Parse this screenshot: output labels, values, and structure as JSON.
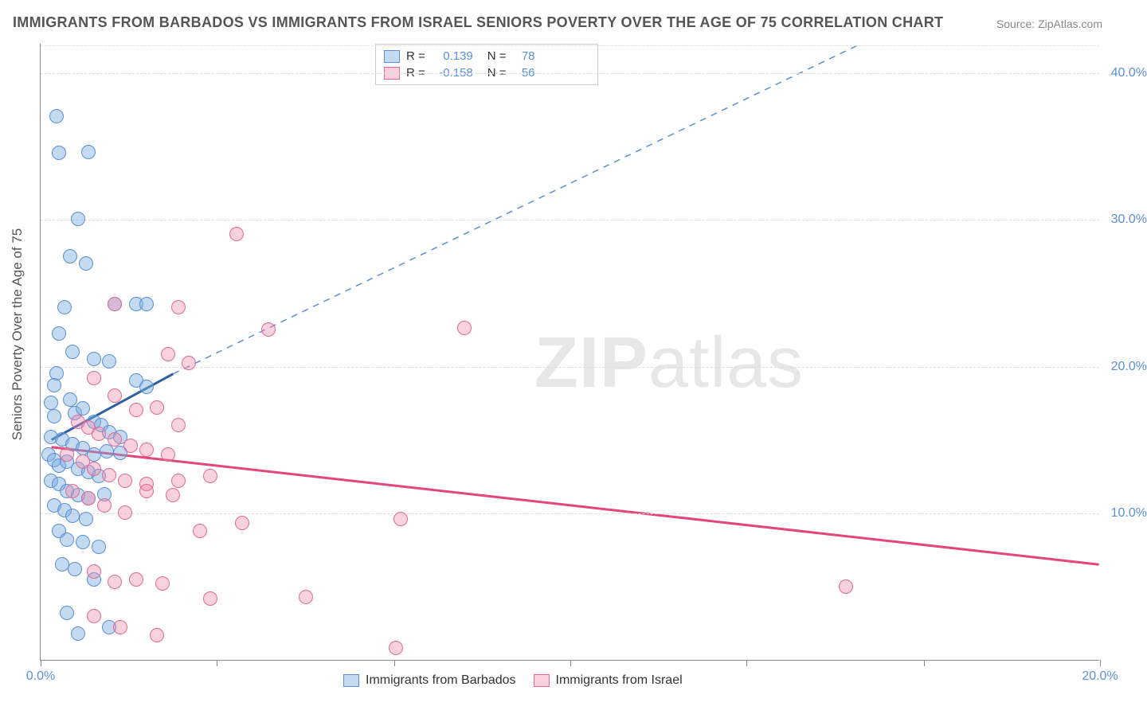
{
  "title": "IMMIGRANTS FROM BARBADOS VS IMMIGRANTS FROM ISRAEL SENIORS POVERTY OVER THE AGE OF 75 CORRELATION CHART",
  "source": "Source: ZipAtlas.com",
  "y_axis_label": "Seniors Poverty Over the Age of 75",
  "watermark_a": "ZIP",
  "watermark_b": "atlas",
  "chart": {
    "type": "scatter",
    "xlim": [
      0,
      20
    ],
    "ylim": [
      0,
      42
    ],
    "x_ticks": [
      0,
      3.33,
      6.67,
      10,
      13.33,
      16.67,
      20
    ],
    "x_tick_labels": {
      "0": "0.0%",
      "20": "20.0%"
    },
    "y_grid": [
      10,
      20,
      30,
      40
    ],
    "y_tick_labels": {
      "10": "10.0%",
      "20": "20.0%",
      "30": "30.0%",
      "40": "40.0%"
    },
    "background_color": "#ffffff",
    "grid_color": "#dddddd",
    "axis_color": "#888888",
    "point_radius": 9,
    "series": [
      {
        "name": "Immigrants from Barbados",
        "fill": "rgba(122,172,224,0.45)",
        "stroke": "#5b8fd6",
        "R": "0.139",
        "N": "78",
        "trend": {
          "solid": {
            "x1": 0.2,
            "y1": 15.0,
            "x2": 2.5,
            "y2": 19.5,
            "color": "#2e5fa3",
            "width": 3
          },
          "dashed": {
            "x1": 2.5,
            "y1": 19.5,
            "x2": 15.5,
            "y2": 42.0,
            "color": "#5b8fd6",
            "width": 1.5
          }
        },
        "points": [
          [
            0.3,
            37.0
          ],
          [
            0.35,
            34.5
          ],
          [
            0.9,
            34.6
          ],
          [
            0.7,
            30.0
          ],
          [
            0.55,
            27.5
          ],
          [
            0.85,
            27.0
          ],
          [
            1.4,
            24.2
          ],
          [
            1.8,
            24.2
          ],
          [
            2.0,
            24.2
          ],
          [
            0.45,
            24.0
          ],
          [
            0.35,
            22.2
          ],
          [
            0.6,
            21.0
          ],
          [
            1.0,
            20.5
          ],
          [
            1.3,
            20.3
          ],
          [
            1.8,
            19.0
          ],
          [
            2.0,
            18.6
          ],
          [
            0.3,
            19.5
          ],
          [
            0.25,
            18.7
          ],
          [
            0.2,
            17.5
          ],
          [
            0.25,
            16.6
          ],
          [
            0.55,
            17.7
          ],
          [
            0.65,
            16.8
          ],
          [
            0.8,
            17.1
          ],
          [
            1.0,
            16.2
          ],
          [
            1.15,
            16.0
          ],
          [
            1.3,
            15.5
          ],
          [
            0.2,
            15.2
          ],
          [
            0.4,
            15.0
          ],
          [
            0.6,
            14.7
          ],
          [
            0.8,
            14.4
          ],
          [
            1.0,
            14.0
          ],
          [
            1.25,
            14.2
          ],
          [
            1.5,
            14.1
          ],
          [
            0.15,
            14.0
          ],
          [
            0.25,
            13.6
          ],
          [
            0.35,
            13.2
          ],
          [
            0.5,
            13.5
          ],
          [
            0.7,
            13.0
          ],
          [
            0.9,
            12.8
          ],
          [
            1.1,
            12.5
          ],
          [
            0.2,
            12.2
          ],
          [
            0.35,
            12.0
          ],
          [
            0.5,
            11.5
          ],
          [
            0.7,
            11.2
          ],
          [
            0.9,
            11.0
          ],
          [
            1.2,
            11.3
          ],
          [
            1.5,
            15.2
          ],
          [
            0.25,
            10.5
          ],
          [
            0.45,
            10.2
          ],
          [
            0.6,
            9.8
          ],
          [
            0.85,
            9.6
          ],
          [
            0.35,
            8.8
          ],
          [
            0.5,
            8.2
          ],
          [
            0.8,
            8.0
          ],
          [
            1.1,
            7.7
          ],
          [
            0.4,
            6.5
          ],
          [
            0.65,
            6.2
          ],
          [
            0.5,
            3.2
          ],
          [
            0.7,
            1.8
          ],
          [
            1.3,
            2.2
          ],
          [
            1.0,
            5.5
          ]
        ]
      },
      {
        "name": "Immigrants from Israel",
        "fill": "rgba(236,140,173,0.40)",
        "stroke": "#e06a96",
        "R": "-0.158",
        "N": "56",
        "trend": {
          "solid": {
            "x1": 0.2,
            "y1": 14.5,
            "x2": 20.0,
            "y2": 6.5,
            "color": "#e4457b",
            "width": 3
          }
        },
        "points": [
          [
            3.7,
            29.0
          ],
          [
            4.3,
            22.5
          ],
          [
            8.0,
            22.6
          ],
          [
            2.8,
            20.2
          ],
          [
            1.4,
            24.2
          ],
          [
            2.6,
            24.0
          ],
          [
            1.0,
            19.2
          ],
          [
            1.4,
            18.0
          ],
          [
            1.8,
            17.0
          ],
          [
            2.2,
            17.2
          ],
          [
            2.6,
            16.0
          ],
          [
            2.4,
            20.8
          ],
          [
            0.7,
            16.2
          ],
          [
            0.9,
            15.8
          ],
          [
            1.1,
            15.4
          ],
          [
            1.4,
            15.0
          ],
          [
            1.7,
            14.6
          ],
          [
            2.0,
            14.3
          ],
          [
            2.4,
            14.0
          ],
          [
            0.5,
            14.0
          ],
          [
            0.8,
            13.5
          ],
          [
            1.0,
            13.0
          ],
          [
            1.3,
            12.6
          ],
          [
            1.6,
            12.2
          ],
          [
            2.0,
            12.0
          ],
          [
            2.6,
            12.2
          ],
          [
            3.2,
            12.5
          ],
          [
            0.6,
            11.5
          ],
          [
            0.9,
            11.0
          ],
          [
            1.2,
            10.5
          ],
          [
            1.6,
            10.0
          ],
          [
            2.0,
            11.5
          ],
          [
            2.5,
            11.2
          ],
          [
            3.8,
            9.3
          ],
          [
            6.8,
            9.6
          ],
          [
            3.0,
            8.8
          ],
          [
            1.0,
            6.0
          ],
          [
            1.4,
            5.3
          ],
          [
            2.3,
            5.2
          ],
          [
            1.8,
            5.5
          ],
          [
            3.2,
            4.2
          ],
          [
            5.0,
            4.3
          ],
          [
            15.2,
            5.0
          ],
          [
            1.0,
            3.0
          ],
          [
            1.5,
            2.2
          ],
          [
            2.2,
            1.7
          ],
          [
            6.7,
            0.8
          ]
        ]
      }
    ]
  },
  "legend_bottom": [
    {
      "label": "Immigrants from Barbados",
      "fill": "rgba(122,172,224,0.45)",
      "stroke": "#5b8fd6"
    },
    {
      "label": "Immigrants from Israel",
      "fill": "rgba(236,140,173,0.40)",
      "stroke": "#e06a96"
    }
  ]
}
